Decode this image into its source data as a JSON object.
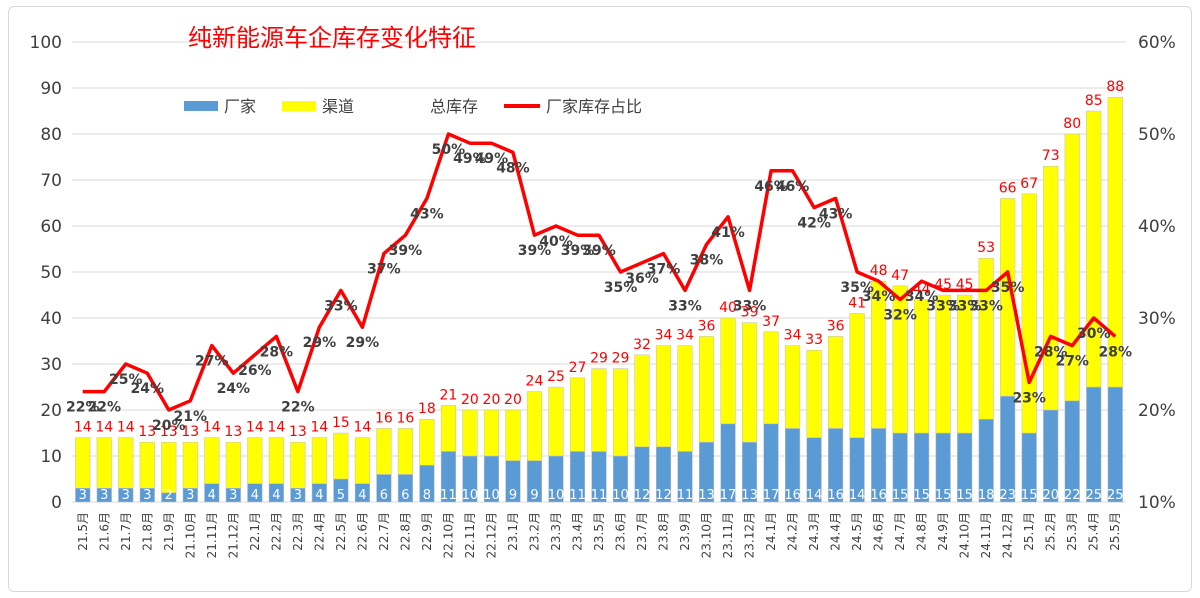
{
  "chart_data": {
    "type": "bar",
    "title": "纯新能源车企库存变化特征",
    "categories": [
      "21.5月",
      "21.6月",
      "21.7月",
      "21.8月",
      "21.9月",
      "21.10月",
      "21.11月",
      "21.12月",
      "22.1月",
      "22.2月",
      "22.3月",
      "22.4月",
      "22.5月",
      "22.6月",
      "22.7月",
      "22.8月",
      "22.9月",
      "22.10月",
      "22.11月",
      "22.12月",
      "23.1月",
      "23.2月",
      "23.3月",
      "23.4月",
      "23.5月",
      "23.6月",
      "23.7月",
      "23.8月",
      "23.9月",
      "23.10月",
      "23.11月",
      "23.12月",
      "24.1月",
      "24.2月",
      "24.3月",
      "24.4月",
      "24.5月",
      "24.6月",
      "24.7月",
      "24.8月",
      "24.9月",
      "24.10月",
      "24.11月",
      "24.12月",
      "25.1月",
      "25.2月",
      "25.3月",
      "25.4月",
      "25.5月"
    ],
    "series": [
      {
        "name": "厂家",
        "color": "#5b9bd5",
        "values": [
          3,
          3,
          3,
          3,
          2,
          3,
          4,
          3,
          4,
          4,
          3,
          4,
          5,
          4,
          6,
          6,
          8,
          11,
          10,
          10,
          9,
          9,
          10,
          11,
          11,
          10,
          12,
          12,
          11,
          13,
          17,
          13,
          17,
          16,
          14,
          16,
          14,
          16,
          15,
          15,
          15,
          15,
          18,
          23,
          15,
          20,
          22,
          25,
          25
        ]
      },
      {
        "name": "渠道",
        "color": "#ffff00",
        "values": [
          11,
          11,
          11,
          10,
          11,
          10,
          10,
          10,
          10,
          10,
          10,
          10,
          10,
          10,
          10,
          10,
          10,
          10,
          10,
          10,
          11,
          15,
          15,
          16,
          18,
          19,
          20,
          22,
          23,
          23,
          23,
          26,
          20,
          18,
          19,
          20,
          27,
          32,
          32,
          29,
          30,
          30,
          35,
          43,
          52,
          53,
          58,
          60,
          63
        ]
      },
      {
        "name": "总库存",
        "values": [
          14,
          14,
          14,
          13,
          13,
          13,
          14,
          13,
          14,
          14,
          13,
          14,
          15,
          14,
          16,
          16,
          18,
          21,
          20,
          20,
          20,
          24,
          25,
          27,
          29,
          29,
          32,
          34,
          34,
          36,
          40,
          39,
          37,
          34,
          33,
          36,
          41,
          48,
          47,
          44,
          45,
          45,
          53,
          66,
          67,
          73,
          80,
          85,
          88
        ]
      },
      {
        "name": "厂家库存占比",
        "color": "#ff0000",
        "values": [
          22,
          22,
          25,
          24,
          20,
          21,
          27,
          24,
          26,
          28,
          22,
          29,
          33,
          29,
          37,
          39,
          43,
          50,
          49,
          49,
          48,
          39,
          40,
          39,
          39,
          35,
          36,
          37,
          33,
          38,
          41,
          33,
          46,
          46,
          42,
          43,
          35,
          34,
          32,
          34,
          33,
          33,
          33,
          35,
          23,
          28,
          27,
          30,
          28
        ]
      }
    ],
    "total_labels": [
      "14",
      "14",
      "14",
      "13",
      "13",
      "13",
      "14",
      "13",
      "14",
      "14",
      "13",
      "14",
      "15",
      "14",
      "16",
      "16",
      "18",
      "21",
      "20",
      "20",
      "20",
      "24",
      "25",
      "27",
      "29",
      "29",
      "32",
      "34",
      "34",
      "36",
      "40",
      "39",
      "37",
      "34",
      "33",
      "36",
      "41",
      "48",
      "47",
      "44",
      "45",
      "45",
      "53",
      "66",
      "67",
      "73",
      "80",
      "85",
      "88"
    ],
    "left_axis": {
      "ylim": [
        0,
        100
      ],
      "ticks": [
        "0",
        "10",
        "20",
        "30",
        "40",
        "50",
        "60",
        "70",
        "80",
        "90",
        "100"
      ]
    },
    "right_axis": {
      "ylim": [
        10,
        60
      ],
      "ticks": [
        "10%",
        "20%",
        "30%",
        "40%",
        "50%",
        "60%"
      ]
    },
    "legend_position": "top-left",
    "grid": true,
    "colors": {
      "title": "#ff0000",
      "total_label": "#ff0000",
      "line_label": "#404040",
      "grid": "#d9d9d9"
    }
  }
}
